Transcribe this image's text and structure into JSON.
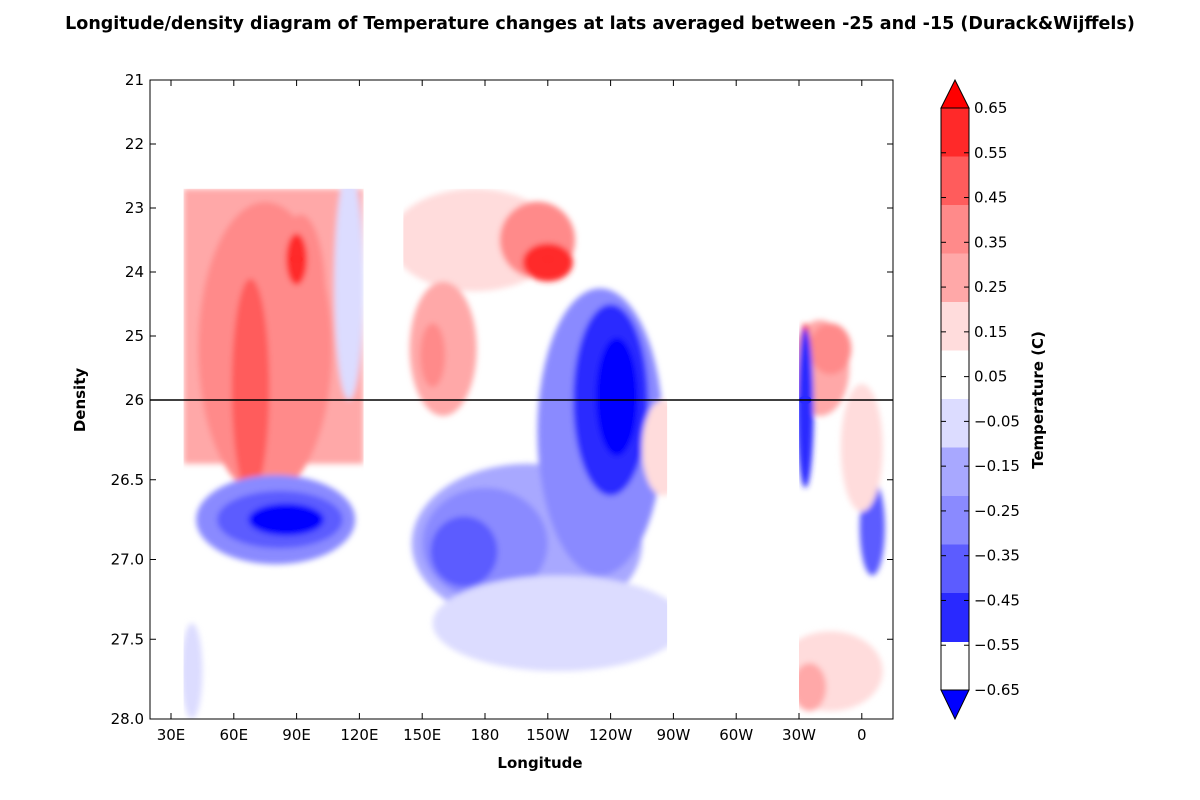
{
  "chart_data": {
    "type": "heatmap",
    "title": "Longitude/density diagram of Temperature changes at lats averaged between -25 and -15 (Durack&Wijffels)",
    "xlabel": "Longitude",
    "ylabel": "Density",
    "colorbar_label": "Temperature (C)",
    "x_ticks": [
      "30E",
      "60E",
      "90E",
      "120E",
      "150E",
      "180",
      "150W",
      "120W",
      "90W",
      "60W",
      "30W",
      "0"
    ],
    "y_ticks": [
      "21",
      "22",
      "23",
      "24",
      "25",
      "26",
      "26.5",
      "27.0",
      "27.5",
      "28.0"
    ],
    "y_upper_segment": [
      21,
      26
    ],
    "y_lower_segment": [
      26,
      28
    ],
    "xlim_degrees_east": [
      20,
      380
    ],
    "reference_line_density": 26,
    "colorbar_levels": [
      "0.65",
      "0.55",
      "0.45",
      "0.35",
      "0.25",
      "0.15",
      "0.05",
      "−0.05",
      "−0.15",
      "−0.25",
      "−0.35",
      "−0.45",
      "−0.55",
      "−0.65"
    ],
    "colorbar_colors": [
      "#ff0000",
      "#ff2929",
      "#ff5c5c",
      "#ff8a8a",
      "#ffa8a8",
      "#ffdcdc",
      "#ffffff",
      "#dcdcff",
      "#a8a8ff",
      "#8a8aff",
      "#5c5cff",
      "#2929ff",
      "#0000ff"
    ],
    "features": [
      {
        "lon": 90,
        "density": 23.8,
        "value": 0.5
      },
      {
        "lon": 65,
        "density": 25.8,
        "value": 0.4
      },
      {
        "lon": 85,
        "density": 26.75,
        "value": -0.6
      },
      {
        "lon": 155,
        "density": 25.2,
        "value": 0.3
      },
      {
        "lon": 170,
        "density": 26.95,
        "value": -0.4
      },
      {
        "lon": 240,
        "density": 26.0,
        "value": -0.6
      },
      {
        "lon": 210,
        "density": 23.8,
        "value": 0.5
      },
      {
        "lon": 333,
        "density": 26.0,
        "value": -0.45
      },
      {
        "lon": 365,
        "density": 26.8,
        "value": -0.35
      },
      {
        "lon": 335,
        "density": 27.8,
        "value": 0.25
      }
    ]
  }
}
